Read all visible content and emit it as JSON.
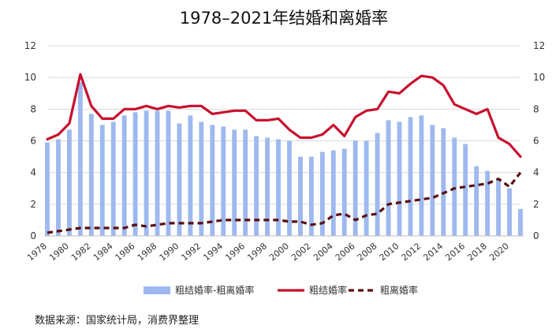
{
  "chart_data": {
    "type": "bar",
    "title": "1978–2021年结婚和离婚率",
    "x": [
      1978,
      1979,
      1980,
      1981,
      1982,
      1983,
      1984,
      1985,
      1986,
      1987,
      1988,
      1989,
      1990,
      1991,
      1992,
      1993,
      1994,
      1995,
      1996,
      1997,
      1998,
      1999,
      2000,
      2001,
      2002,
      2003,
      2004,
      2005,
      2006,
      2007,
      2008,
      2009,
      2010,
      2011,
      2012,
      2013,
      2014,
      2015,
      2016,
      2017,
      2018,
      2019,
      2020,
      2021
    ],
    "x_tick_labels": [
      "1978",
      "1980",
      "1982",
      "1984",
      "1986",
      "1988",
      "1990",
      "1992",
      "1994",
      "1996",
      "1998",
      "2000",
      "2002",
      "2004",
      "2006",
      "2008",
      "2010",
      "2012",
      "2014",
      "2016",
      "2018",
      "2020"
    ],
    "y_left_ticks": [
      "0",
      "2",
      "4",
      "6",
      "8",
      "10",
      "12"
    ],
    "y_right_ticks": [
      "0",
      "2",
      "4",
      "6",
      "8",
      "10",
      "12"
    ],
    "ylim": [
      0,
      12
    ],
    "grid": true,
    "legend_position": "bottom",
    "series": [
      {
        "name": "粗结婚率-粗离婚率",
        "kind": "bar",
        "color": "#9db9ef",
        "values": [
          5.9,
          6.1,
          6.7,
          9.7,
          7.7,
          7.0,
          7.2,
          7.6,
          7.8,
          7.9,
          7.9,
          7.9,
          7.1,
          7.6,
          7.2,
          7.0,
          6.9,
          6.7,
          6.7,
          6.3,
          6.2,
          6.1,
          6.0,
          5.0,
          5.0,
          5.3,
          5.4,
          5.5,
          6.0,
          6.0,
          6.5,
          7.3,
          7.2,
          7.5,
          7.6,
          7.0,
          6.8,
          6.2,
          5.8,
          4.4,
          4.1,
          3.6,
          3.0,
          1.7
        ]
      },
      {
        "name": "粗结婚率",
        "kind": "line",
        "color": "#c8102e",
        "values": [
          6.1,
          6.4,
          7.1,
          10.2,
          8.2,
          7.4,
          7.4,
          8.0,
          8.0,
          8.2,
          8.0,
          8.2,
          8.1,
          8.2,
          8.2,
          7.7,
          7.8,
          7.9,
          7.9,
          7.3,
          7.3,
          7.4,
          6.7,
          6.2,
          6.2,
          6.4,
          7.0,
          6.3,
          7.5,
          7.9,
          8.0,
          9.1,
          9.0,
          9.6,
          10.1,
          10.0,
          9.5,
          8.3,
          8.0,
          7.7,
          8.0,
          6.2,
          5.8,
          5.0
        ]
      },
      {
        "name": "粗离婚率",
        "kind": "dashed-line",
        "color": "#5a0f12",
        "values": [
          0.2,
          0.3,
          0.4,
          0.5,
          0.5,
          0.5,
          0.5,
          0.5,
          0.7,
          0.6,
          0.7,
          0.8,
          0.8,
          0.8,
          0.8,
          0.9,
          1.0,
          1.0,
          1.0,
          1.0,
          1.0,
          1.0,
          0.9,
          0.9,
          0.7,
          0.8,
          1.3,
          1.4,
          1.0,
          1.3,
          1.4,
          2.0,
          2.1,
          2.2,
          2.3,
          2.4,
          2.7,
          3.0,
          3.1,
          3.2,
          3.3,
          3.6,
          3.1,
          4.0
        ]
      }
    ]
  },
  "source_note": "数据来源：国家统计局，消费界整理"
}
